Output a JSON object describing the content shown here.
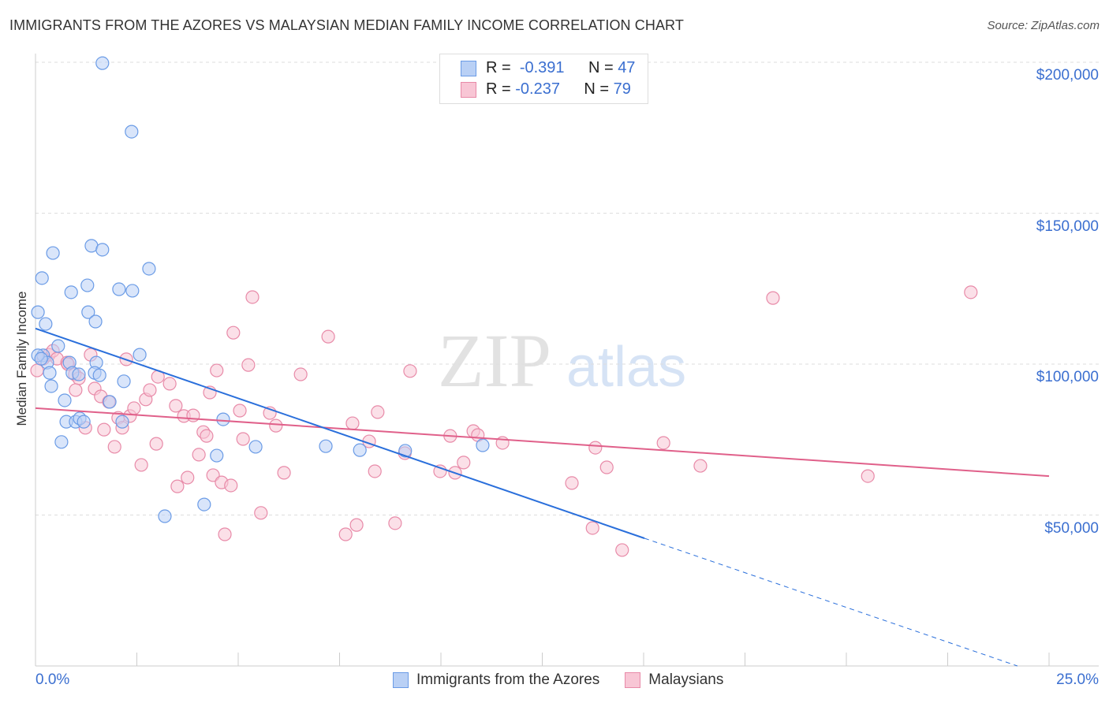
{
  "title": "IMMIGRANTS FROM THE AZORES VS MALAYSIAN MEDIAN FAMILY INCOME CORRELATION CHART",
  "source": "Source: ZipAtlas.com",
  "watermark": "ZIPatlas",
  "chart_data": {
    "type": "scatter",
    "xlabel": "",
    "ylabel": "Median Family Income",
    "xlim": [
      0,
      25
    ],
    "ylim": [
      0,
      210000
    ],
    "x_tick_labels": [
      "0.0%",
      "25.0%"
    ],
    "y_ticks": [
      {
        "value": 200000,
        "label": "$200,000"
      },
      {
        "value": 150000,
        "label": "$150,000"
      },
      {
        "value": 100000,
        "label": "$100,000"
      },
      {
        "value": 50000,
        "label": "$50,000"
      }
    ],
    "grid": true,
    "legend_placement": "top-center",
    "stats": [
      {
        "r_label": "R =",
        "r": "-0.391",
        "n_label": "N =",
        "n": "47"
      },
      {
        "r_label": "R =",
        "r": "-0.237",
        "n_label": "N =",
        "n": "79"
      }
    ],
    "series": [
      {
        "name": "Immigrants from the Azores",
        "color": "#6a9be6",
        "fill": "#b9d0f5",
        "line_color": "#2a6fdb",
        "trend": {
          "start": [
            0,
            111800
          ],
          "solid_end": [
            15.02,
            42300
          ],
          "dashed_end": [
            24.22,
            0
          ]
        },
        "points": [
          [
            1.65,
            199700
          ],
          [
            2.37,
            177000
          ],
          [
            1.38,
            139200
          ],
          [
            1.65,
            137900
          ],
          [
            0.43,
            136800
          ],
          [
            2.8,
            131600
          ],
          [
            0.16,
            128500
          ],
          [
            1.28,
            126100
          ],
          [
            2.06,
            124800
          ],
          [
            2.39,
            124300
          ],
          [
            0.88,
            123800
          ],
          [
            0.06,
            117200
          ],
          [
            1.3,
            117200
          ],
          [
            0.25,
            113300
          ],
          [
            1.48,
            114100
          ],
          [
            0.56,
            106000
          ],
          [
            2.57,
            103100
          ],
          [
            0.19,
            102900
          ],
          [
            0.29,
            100500
          ],
          [
            0.84,
            100500
          ],
          [
            1.5,
            100500
          ],
          [
            0.35,
            97100
          ],
          [
            0.91,
            97100
          ],
          [
            1.46,
            97100
          ],
          [
            1.58,
            96300
          ],
          [
            2.18,
            94300
          ],
          [
            0.39,
            92700
          ],
          [
            1.83,
            87500
          ],
          [
            0.72,
            88000
          ],
          [
            0.76,
            80900
          ],
          [
            0.99,
            80900
          ],
          [
            1.09,
            82000
          ],
          [
            1.19,
            80900
          ],
          [
            2.14,
            80900
          ],
          [
            4.63,
            81700
          ],
          [
            0.64,
            74200
          ],
          [
            4.47,
            69700
          ],
          [
            5.43,
            72600
          ],
          [
            7.16,
            72800
          ],
          [
            8.0,
            71500
          ],
          [
            9.12,
            71300
          ],
          [
            11.03,
            73100
          ],
          [
            3.19,
            49600
          ],
          [
            4.16,
            53500
          ],
          [
            0.06,
            102900
          ],
          [
            0.14,
            101800
          ],
          [
            1.07,
            96600
          ]
        ]
      },
      {
        "name": "Malaysians",
        "color": "#e88aa8",
        "fill": "#f8c6d5",
        "line_color": "#e0608a",
        "trend": {
          "start": [
            0,
            85400
          ],
          "end": [
            25,
            62900
          ]
        },
        "points": [
          [
            0.04,
            97900
          ],
          [
            0.19,
            101800
          ],
          [
            0.33,
            103100
          ],
          [
            0.43,
            104400
          ],
          [
            0.53,
            101800
          ],
          [
            0.78,
            100500
          ],
          [
            0.97,
            96600
          ],
          [
            1.07,
            95300
          ],
          [
            0.99,
            91400
          ],
          [
            0.8,
            100000
          ],
          [
            1.36,
            103100
          ],
          [
            1.46,
            91900
          ],
          [
            1.61,
            89300
          ],
          [
            1.23,
            78900
          ],
          [
            1.69,
            78300
          ],
          [
            1.81,
            87500
          ],
          [
            1.95,
            72600
          ],
          [
            2.04,
            82200
          ],
          [
            2.14,
            78900
          ],
          [
            2.24,
            101600
          ],
          [
            2.33,
            82800
          ],
          [
            2.43,
            85400
          ],
          [
            2.61,
            66600
          ],
          [
            2.72,
            88300
          ],
          [
            2.82,
            91400
          ],
          [
            2.98,
            73600
          ],
          [
            3.02,
            95800
          ],
          [
            3.31,
            93500
          ],
          [
            3.46,
            86200
          ],
          [
            3.5,
            59500
          ],
          [
            3.66,
            82800
          ],
          [
            3.75,
            62400
          ],
          [
            3.89,
            83000
          ],
          [
            4.03,
            70000
          ],
          [
            4.14,
            77500
          ],
          [
            4.22,
            76200
          ],
          [
            4.3,
            90600
          ],
          [
            4.38,
            63200
          ],
          [
            4.47,
            97900
          ],
          [
            4.59,
            60800
          ],
          [
            4.67,
            43600
          ],
          [
            4.82,
            59800
          ],
          [
            4.88,
            110400
          ],
          [
            5.04,
            84600
          ],
          [
            5.12,
            75200
          ],
          [
            5.25,
            99700
          ],
          [
            5.35,
            122200
          ],
          [
            5.56,
            50700
          ],
          [
            5.78,
            83800
          ],
          [
            5.93,
            79600
          ],
          [
            6.13,
            64000
          ],
          [
            6.54,
            96600
          ],
          [
            7.22,
            109100
          ],
          [
            7.65,
            43600
          ],
          [
            7.82,
            80400
          ],
          [
            7.92,
            46700
          ],
          [
            8.23,
            74400
          ],
          [
            8.37,
            64500
          ],
          [
            8.44,
            84100
          ],
          [
            8.87,
            47300
          ],
          [
            9.11,
            70500
          ],
          [
            9.24,
            97700
          ],
          [
            9.98,
            64500
          ],
          [
            10.23,
            76200
          ],
          [
            10.35,
            64000
          ],
          [
            10.56,
            67400
          ],
          [
            10.8,
            77800
          ],
          [
            10.91,
            76500
          ],
          [
            11.52,
            73900
          ],
          [
            13.23,
            60600
          ],
          [
            13.74,
            45700
          ],
          [
            13.81,
            72300
          ],
          [
            14.09,
            65800
          ],
          [
            14.47,
            38400
          ],
          [
            15.49,
            73900
          ],
          [
            16.4,
            66300
          ],
          [
            18.19,
            121900
          ],
          [
            20.53,
            62900
          ],
          [
            23.07,
            123800
          ]
        ]
      }
    ]
  }
}
